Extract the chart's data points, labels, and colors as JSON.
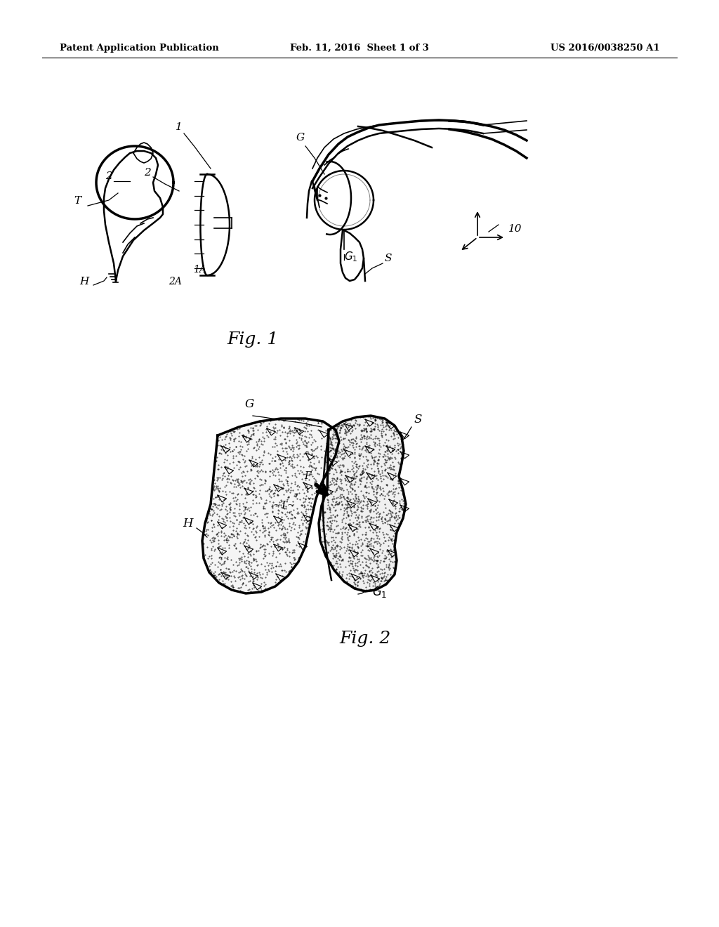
{
  "bg_color": "#ffffff",
  "header_left": "Patent Application Publication",
  "header_center": "Feb. 11, 2016  Sheet 1 of 3",
  "header_right": "US 2016/0038250 A1",
  "fig1_caption": "Fig. 1",
  "fig2_caption": "Fig. 2"
}
